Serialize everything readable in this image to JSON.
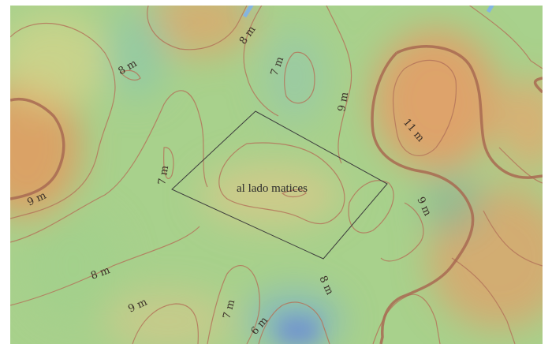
{
  "map": {
    "area_label": "al lado matices",
    "contour_labels": [
      {
        "id": "c1",
        "text": "8 m"
      },
      {
        "id": "c2",
        "text": "8 m"
      },
      {
        "id": "c3",
        "text": "7 m"
      },
      {
        "id": "c4",
        "text": "9 m"
      },
      {
        "id": "c5",
        "text": "11 m"
      },
      {
        "id": "c6",
        "text": "7 m"
      },
      {
        "id": "c7",
        "text": "9 m"
      },
      {
        "id": "c8",
        "text": "9 m"
      },
      {
        "id": "c9",
        "text": "8 m"
      },
      {
        "id": "c10",
        "text": "8 m"
      },
      {
        "id": "c11",
        "text": "9 m"
      },
      {
        "id": "c12",
        "text": "7 m"
      },
      {
        "id": "c13",
        "text": "6 m"
      }
    ],
    "colors": {
      "low": "#8fc7a8",
      "mid": "#a9d08a",
      "high": "#e0a468",
      "contour": "#b0735a",
      "contour_index": "#a86a52",
      "water": "#7fb3e8",
      "parcel": "#3c3c3c"
    }
  }
}
